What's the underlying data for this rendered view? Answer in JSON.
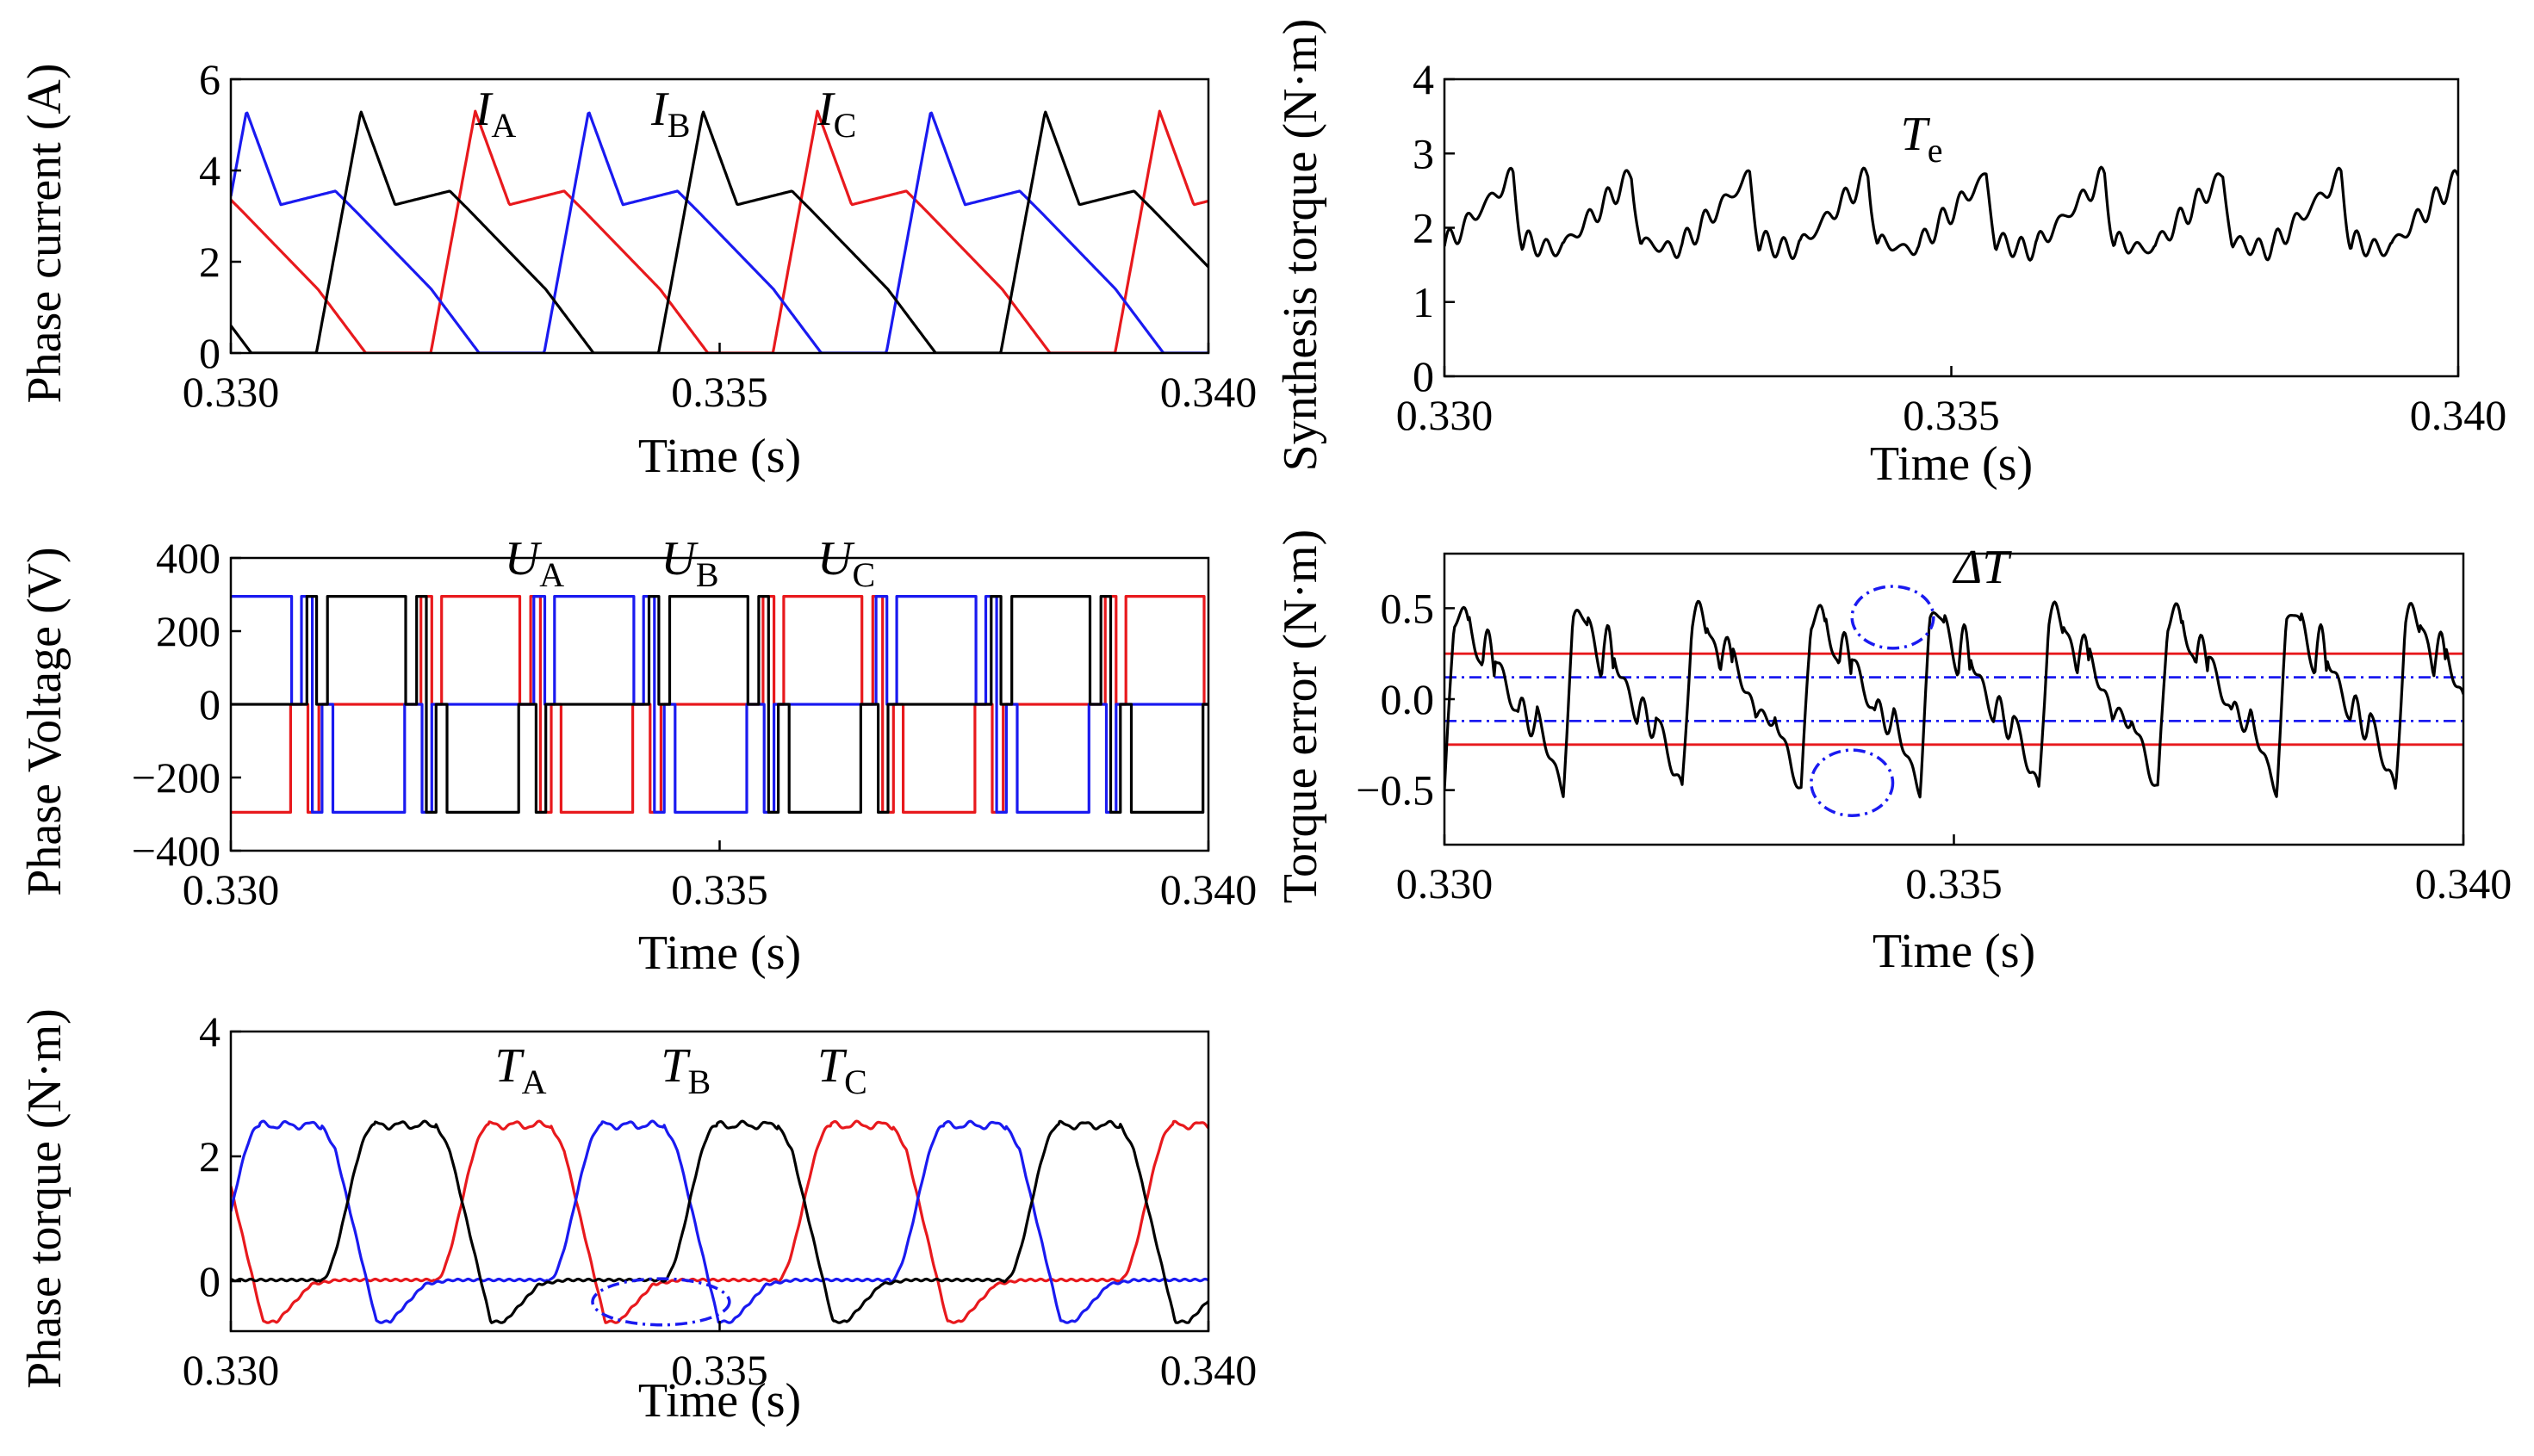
{
  "colors": {
    "A": "#e8191d",
    "B": "#1a1af0",
    "C": "#000000",
    "Te": "#000000",
    "error": "#000000",
    "limit": "#e8191d",
    "band": "#1a1af0"
  },
  "chart_data": [
    {
      "id": "phase-current",
      "type": "line",
      "title": "",
      "xlabel": "Time (s)",
      "ylabel": "Phase current (A)",
      "xlim": [
        0.33,
        0.34
      ],
      "ylim": [
        0,
        6
      ],
      "xticks": [
        "0.330",
        "0.335",
        "0.340"
      ],
      "yticks": [
        "0",
        "2",
        "4",
        "6"
      ],
      "legend": "inline",
      "period": 0.0035,
      "shape": "current",
      "series": [
        {
          "key": "A",
          "label": "I",
          "sub": "A",
          "offset": 0.00187,
          "label_x": 0.3325,
          "label_y": 5.0
        },
        {
          "key": "B",
          "label": "I",
          "sub": "B",
          "offset": 0.00303,
          "label_x": 0.3343,
          "label_y": 5.0
        },
        {
          "key": "C",
          "label": "I",
          "sub": "C",
          "offset": 0.0007,
          "label_x": 0.336,
          "label_y": 5.0
        }
      ]
    },
    {
      "id": "phase-voltage",
      "type": "line",
      "title": "",
      "xlabel": "Time (s)",
      "ylabel": "Phase Voltage (V)",
      "xlim": [
        0.33,
        0.34
      ],
      "ylim": [
        -400,
        400
      ],
      "xticks": [
        "0.330",
        "0.335",
        "0.340"
      ],
      "yticks": [
        "400",
        "200",
        "0",
        "−200",
        "−400"
      ],
      "ytick_values": [
        400,
        200,
        0,
        -200,
        -400
      ],
      "legend": "inline",
      "period": 0.0035,
      "shape": "voltage",
      "series": [
        {
          "key": "A",
          "label": "U",
          "sub": "A",
          "offset": 0.00187,
          "label_x": 0.3328,
          "label_y": 355
        },
        {
          "key": "B",
          "label": "U",
          "sub": "B",
          "offset": 0.00303,
          "label_x": 0.3344,
          "label_y": 355
        },
        {
          "key": "C",
          "label": "U",
          "sub": "C",
          "offset": 0.0007,
          "label_x": 0.336,
          "label_y": 355
        }
      ]
    },
    {
      "id": "phase-torque",
      "type": "line",
      "title": "",
      "xlabel": "Time (s)",
      "ylabel": "Phase torque (N·m)",
      "xlim": [
        0.33,
        0.34
      ],
      "ylim": [
        -0.8,
        4
      ],
      "xticks": [
        "0.330",
        "0.335",
        "0.340"
      ],
      "yticks": [
        "4",
        "2",
        "0"
      ],
      "ytick_values": [
        4,
        2,
        0
      ],
      "legend": "inline",
      "period": 0.0035,
      "shape": "torque",
      "series": [
        {
          "key": "A",
          "label": "T",
          "sub": "A",
          "offset": 0.00187,
          "label_x": 0.3327,
          "label_y": 3.2
        },
        {
          "key": "B",
          "label": "T",
          "sub": "B",
          "offset": 0.00303,
          "label_x": 0.3344,
          "label_y": 3.2
        },
        {
          "key": "C",
          "label": "T",
          "sub": "C",
          "offset": 0.0007,
          "label_x": 0.336,
          "label_y": 3.2
        }
      ],
      "annotation_ellipse": {
        "cx": 0.3344,
        "cy": -0.33,
        "rx": 0.0007,
        "ry": 0.37
      }
    },
    {
      "id": "synthesis-torque",
      "type": "line",
      "title": "",
      "xlabel": "Time (s)",
      "ylabel": "Synthesis torque (N·m)",
      "xlim": [
        0.33,
        0.34
      ],
      "ylim": [
        0,
        4
      ],
      "xticks": [
        "0.330",
        "0.335",
        "0.340"
      ],
      "yticks": [
        "4",
        "3",
        "2",
        "1",
        "0"
      ],
      "ytick_values": [
        4,
        3,
        2,
        1,
        0
      ],
      "legend": "inline",
      "period": 0.001167,
      "shape": "synth",
      "series": [
        {
          "key": "Te",
          "label": "T",
          "sub": "e",
          "offset": 0.0,
          "label_x": 0.3345,
          "label_y": 3.05
        }
      ]
    },
    {
      "id": "torque-error",
      "type": "line",
      "title": "",
      "xlabel": "Time (s)",
      "ylabel": "Torque error (N·m)",
      "xlim": [
        0.33,
        0.34
      ],
      "ylim": [
        -0.8,
        0.8
      ],
      "xticks": [
        "0.330",
        "0.335",
        "0.340"
      ],
      "yticks": [
        "0.5",
        "0.0",
        "−0.5"
      ],
      "ytick_values": [
        0.5,
        0.0,
        -0.5
      ],
      "legend": "inline",
      "period": 0.001167,
      "shape": "error",
      "series": [
        {
          "key": "error",
          "label": "ΔT",
          "sub": "",
          "offset": 0.0,
          "label_x": 0.335,
          "label_y": 0.64
        }
      ],
      "limits": [
        0.25,
        -0.25
      ],
      "band": [
        0.12,
        -0.12
      ],
      "annotation_ellipses": [
        {
          "cx": 0.3344,
          "cy": 0.45,
          "rx": 0.0004,
          "ry": 0.17
        },
        {
          "cx": 0.334,
          "cy": -0.46,
          "rx": 0.0004,
          "ry": 0.18
        }
      ]
    }
  ]
}
